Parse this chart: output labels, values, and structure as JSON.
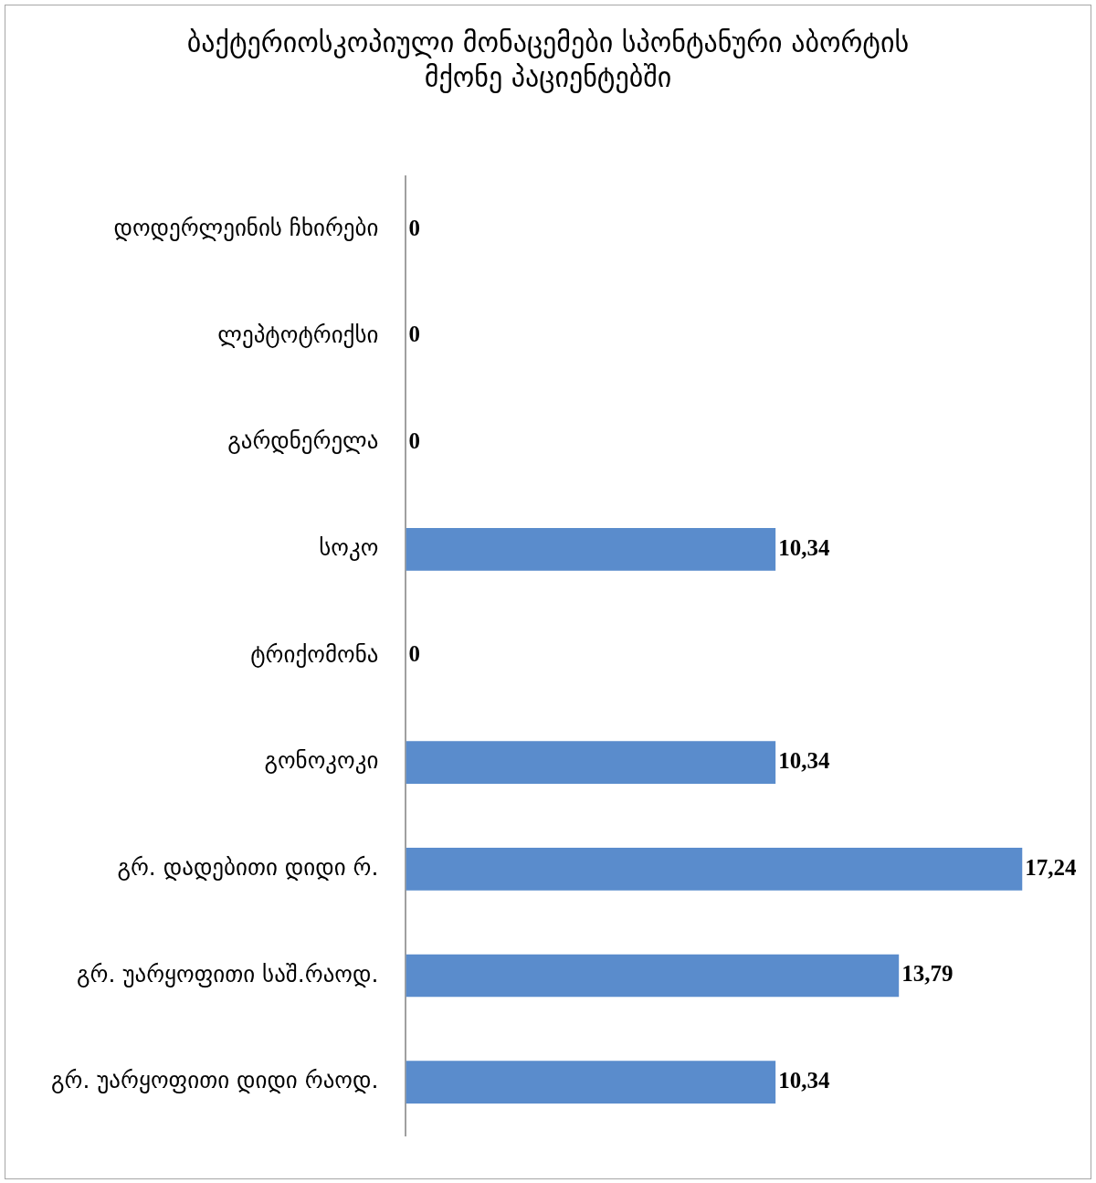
{
  "chart_data": {
    "type": "bar",
    "orientation": "horizontal",
    "title": "ბაქტერიოსკოპიული მონაცემები სპონტანური აბორტის მქონე პაციენტებში",
    "categories": [
      "დოდერლეინის ჩხირები",
      "ლეპტოტრიქსი",
      "გარდნერელა",
      "სოკო",
      "ტრიქომონა",
      "გონოკოკი",
      "გრ. დადებითი დიდი რ.",
      "გრ. უარყოფითი საშ.რაოდ.",
      "გრ. უარყოფითი დიდი რაოდ."
    ],
    "values": [
      0,
      0,
      0,
      10.34,
      0,
      10.34,
      17.24,
      13.79,
      10.34
    ],
    "value_labels": [
      "0",
      "0",
      "0",
      "10,34",
      "0",
      "10,34",
      "17,24",
      "13,79",
      "10,34"
    ],
    "color": "#5a8ccc",
    "tick_labels": "y"
  }
}
